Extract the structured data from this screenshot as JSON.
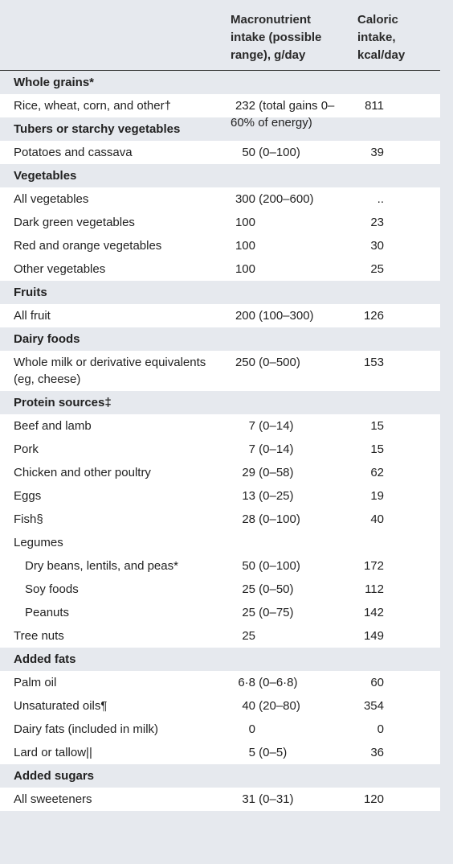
{
  "header": {
    "columns": [
      "Macronutrient intake (possible range), g/day",
      "Caloric intake, kcal/day"
    ]
  },
  "sections": [
    {
      "title": "Whole grains*",
      "rows": [
        {
          "cells": [
            "Rice, wheat, corn, and other†",
            "232 (total gains 0–60% of energy)",
            "811"
          ]
        }
      ]
    },
    {
      "title": "Tubers or starchy vegetables",
      "rows": [
        {
          "cells": [
            "Potatoes and cassava",
            "50 (0–100)",
            "39"
          ]
        }
      ]
    },
    {
      "title": "Vegetables",
      "rows": [
        {
          "cells": [
            "All vegetables",
            "300 (200–600)",
            ".."
          ]
        },
        {
          "cells": [
            "Dark green vegetables",
            "100",
            "23"
          ]
        },
        {
          "cells": [
            "Red and orange vegetables",
            "100",
            "30"
          ]
        },
        {
          "cells": [
            "Other vegetables",
            "100",
            "25"
          ]
        }
      ]
    },
    {
      "title": "Fruits",
      "rows": [
        {
          "cells": [
            "All fruit",
            "200 (100–300)",
            "126"
          ]
        }
      ]
    },
    {
      "title": "Dairy foods",
      "rows": [
        {
          "cells": [
            "Whole milk or derivative equivalents (eg, cheese)",
            "250 (0–500)",
            "153"
          ]
        }
      ]
    },
    {
      "title": "Protein sources‡",
      "rows": [
        {
          "cells": [
            "Beef and lamb",
            "7 (0–14)",
            "15"
          ]
        },
        {
          "cells": [
            "Pork",
            "7 (0–14)",
            "15"
          ]
        },
        {
          "cells": [
            "Chicken and other poultry",
            "29 (0–58)",
            "62"
          ]
        },
        {
          "cells": [
            "Eggs",
            "13 (0–25)",
            "19"
          ]
        },
        {
          "cells": [
            "Fish§",
            "28 (0–100)",
            "40"
          ]
        },
        {
          "cells": [
            "Legumes"
          ]
        },
        {
          "cells": [
            "Dry beans, lentils, and peas*",
            "50 (0–100)",
            "172"
          ],
          "level": 1
        },
        {
          "cells": [
            "Soy foods",
            "25 (0–50)",
            "112"
          ],
          "level": 1
        },
        {
          "cells": [
            "Peanuts",
            "25 (0–75)",
            "142"
          ],
          "level": 1
        },
        {
          "cells": [
            "Tree nuts",
            "25",
            "149"
          ]
        }
      ]
    },
    {
      "title": "Added fats",
      "rows": [
        {
          "cells": [
            "Palm oil",
            "6·8 (0–6·8)",
            "60"
          ]
        },
        {
          "cells": [
            "Unsaturated oils¶",
            "40 (20–80)",
            "354"
          ]
        },
        {
          "cells": [
            "Dairy fats (included in milk)",
            "0",
            "0"
          ]
        },
        {
          "cells": [
            "Lard or tallow||",
            "5 (0–5)",
            "36"
          ]
        }
      ]
    },
    {
      "title": "Added sugars",
      "rows": [
        {
          "cells": [
            "All sweeteners",
            "31 (0–31)",
            "120"
          ]
        }
      ]
    }
  ]
}
